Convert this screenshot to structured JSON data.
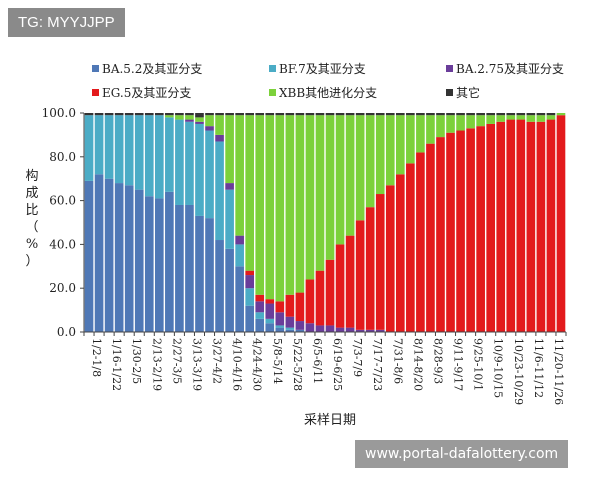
{
  "watermark_top": "TG: MYYJJPP",
  "watermark_bottom": "www.portal-dafalottery.com",
  "chart_data": {
    "type": "bar",
    "stacked": true,
    "ylabel": "构成比（%）",
    "xlabel": "采样日期",
    "ylim": [
      0,
      100
    ],
    "yticks": [
      "0.0",
      "20.0",
      "40.0",
      "60.0",
      "80.0",
      "100.0"
    ],
    "categories": [
      "1/2-1/8",
      "1/9-1/15",
      "1/16-1/22",
      "1/23-1/29",
      "1/30-2/5",
      "2/6-2/12",
      "2/13-2/19",
      "2/20-2/26",
      "2/27-3/5",
      "3/6-3/12",
      "3/13-3/19",
      "3/20-3/26",
      "3/27-4/2",
      "4/3-4/9",
      "4/10-4/16",
      "4/17-4/23",
      "4/24-4/30",
      "5/1-5/7",
      "5/8-5/14",
      "5/15-5/21",
      "5/22-5/28",
      "5/29-6/4",
      "6/5-6/11",
      "6/12-6/18",
      "6/19-6/25",
      "6/26-7/2",
      "7/3-7/9",
      "7/10-7/16",
      "7/17-7/23",
      "7/24-7/30",
      "7/31-8/6",
      "8/7-8/13",
      "8/14-8/20",
      "8/21-8/27",
      "8/28-9/3",
      "9/4-9/10",
      "9/11-9/17",
      "9/18-9/24",
      "9/25-10/1",
      "10/2-10/8",
      "10/9-10/15",
      "10/16-10/22",
      "10/23-10/29",
      "10/30-11/5",
      "11/6-11/12",
      "11/13-11/19",
      "11/20-11/26",
      "11/27-12/3"
    ],
    "xtick_labels": [
      "1/2-1/8",
      "1/16-1/22",
      "1/30-2/5",
      "2/13-2/19",
      "2/27-3/5",
      "3/13-3/19",
      "3/27-4/2",
      "4/10-4/16",
      "4/24-4/30",
      "5/8-5/14",
      "5/22-5/28",
      "6/5-6/11",
      "6/19-6/25",
      "7/3-7/9",
      "7/17-7/23",
      "7/31-8/6",
      "8/14-8/20",
      "8/28-9/3",
      "9/11-9/17",
      "9/25-10/1",
      "10/9-10/15",
      "10/23-10/29",
      "11/6-11/12",
      "11/20-11/26"
    ],
    "legend_position": "top",
    "series": [
      {
        "name": "BA.5.2及其亚分支",
        "color": "#4f78b6",
        "values": [
          69,
          72,
          70,
          68,
          67,
          65,
          62,
          61,
          64,
          58,
          58,
          53,
          52,
          42,
          38,
          30,
          12,
          6,
          4,
          2,
          1,
          1,
          0,
          0,
          0,
          0,
          0,
          0,
          0,
          0,
          0,
          0,
          0,
          0,
          0,
          0,
          0,
          0,
          0,
          0,
          0,
          0,
          0,
          0,
          0,
          0,
          0,
          0
        ]
      },
      {
        "name": "BF.7及其亚分支",
        "color": "#4bacc6",
        "values": [
          30,
          27,
          29,
          31,
          32,
          34,
          37,
          38,
          34,
          39,
          38,
          42,
          40,
          45,
          27,
          10,
          8,
          3,
          2,
          1,
          1,
          0,
          0,
          0,
          0,
          0,
          0,
          0,
          0,
          0,
          0,
          0,
          0,
          0,
          0,
          0,
          0,
          0,
          0,
          0,
          0,
          0,
          0,
          0,
          0,
          0,
          0,
          0
        ]
      },
      {
        "name": "BA.2.75及其亚分支",
        "color": "#6a3d9a",
        "values": [
          0,
          0,
          0,
          0,
          0,
          0,
          0,
          0,
          0,
          0,
          1,
          1,
          2,
          3,
          3,
          4,
          6,
          5,
          7,
          6,
          5,
          4,
          4,
          3,
          3,
          2,
          2,
          1,
          1,
          1,
          0,
          0,
          0,
          0,
          0,
          0,
          0,
          0,
          0,
          0,
          0,
          0,
          0,
          0,
          0,
          0,
          0,
          0
        ]
      },
      {
        "name": "EG.5及其亚分支",
        "color": "#e31a1c",
        "values": [
          0,
          0,
          0,
          0,
          0,
          0,
          0,
          0,
          0,
          0,
          0,
          0,
          0,
          0,
          0,
          0,
          2,
          3,
          2,
          5,
          10,
          13,
          20,
          25,
          30,
          38,
          42,
          50,
          56,
          62,
          67,
          72,
          77,
          82,
          86,
          89,
          91,
          92,
          93,
          94,
          95,
          96,
          97,
          97,
          96,
          96,
          97,
          99
        ]
      },
      {
        "name": "XBB其他进化分支",
        "color": "#7cd13b",
        "values": [
          0,
          0,
          0,
          0,
          0,
          0,
          0,
          0,
          1,
          2,
          2,
          2,
          5,
          9,
          31,
          55,
          71,
          82,
          84,
          85,
          82,
          81,
          75,
          71,
          66,
          59,
          55,
          48,
          42,
          36,
          32,
          27,
          22,
          17,
          13,
          10,
          8,
          7,
          6,
          5,
          4,
          3,
          2,
          2,
          3,
          3,
          2,
          1
        ]
      },
      {
        "name": "其它",
        "color": "#333333",
        "values": [
          1,
          1,
          1,
          1,
          1,
          1,
          1,
          1,
          1,
          1,
          1,
          2,
          1,
          1,
          1,
          1,
          1,
          1,
          1,
          1,
          1,
          1,
          1,
          1,
          1,
          1,
          1,
          1,
          1,
          1,
          1,
          1,
          1,
          1,
          1,
          1,
          1,
          1,
          1,
          1,
          1,
          1,
          1,
          1,
          1,
          1,
          1,
          0
        ]
      }
    ]
  }
}
